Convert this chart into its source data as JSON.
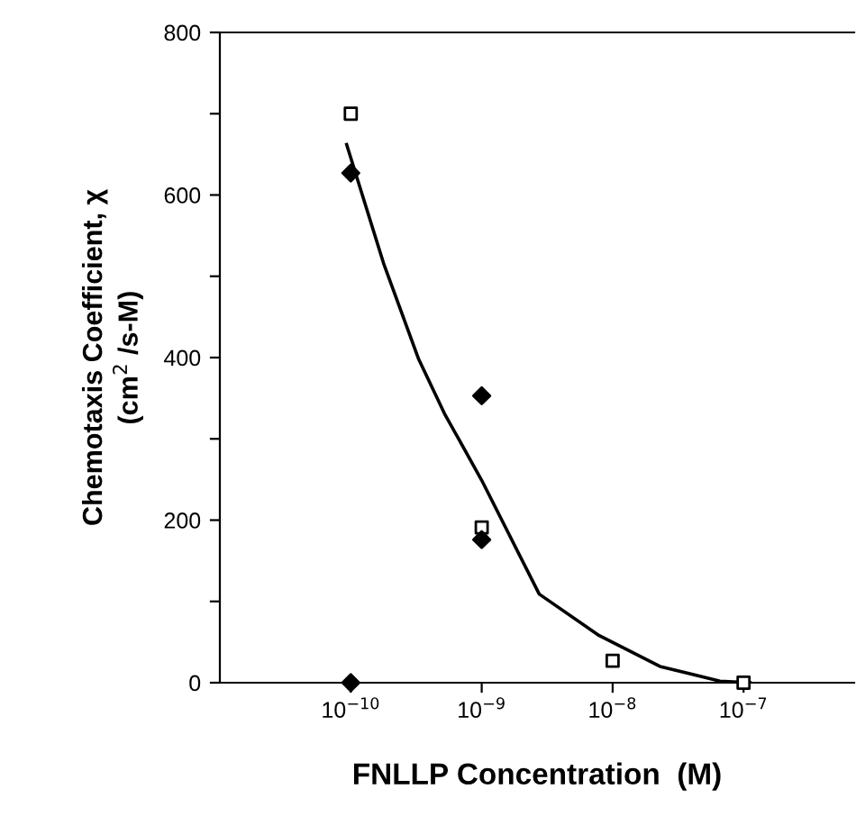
{
  "chart_data": {
    "type": "scatter",
    "xlabel": "FNLLP Concentration  (M)",
    "ylabel": "Chemotaxis Coefficient, χ\n(cm$^{2}$ /s-M)",
    "log": "x",
    "xlim": [
      1e-11,
      7e-07
    ],
    "ylim": [
      0,
      800
    ],
    "xticks": [
      {
        "value": 1e-10,
        "label": "10$^{−10}$"
      },
      {
        "value": 1e-09,
        "label": "10$^{−9}$"
      },
      {
        "value": 1e-08,
        "label": "10$^{−8}$"
      },
      {
        "value": 1e-07,
        "label": "10$^{−7}$"
      }
    ],
    "yticks": [
      0,
      {
        "value": 100,
        "label": null
      },
      200,
      {
        "value": 300,
        "label": null
      },
      400,
      {
        "value": 500,
        "label": null
      },
      600,
      {
        "value": 700,
        "label": null
      },
      800
    ],
    "grid": false,
    "legend": false,
    "series": [
      {
        "marker": "square",
        "color": "#000000",
        "x": [
          1e-10,
          1e-09,
          1e-08,
          1e-07
        ],
        "values": [
          700,
          191,
          27,
          0
        ]
      },
      {
        "marker": "diamond",
        "color": "#000000",
        "x": [
          1e-10,
          1e-10,
          1e-09,
          1e-09
        ],
        "values": [
          627,
          0,
          353,
          176
        ]
      },
      {
        "type": "line",
        "marker": "none",
        "color": "#000000",
        "x": [
          9.3e-11,
          1.78e-10,
          3.3e-10,
          5.2e-10,
          1e-09,
          2.75e-09,
          7.9e-09,
          2.3e-08,
          6.6e-08,
          1.12e-07
        ],
        "values": [
          662,
          516,
          398,
          331,
          249,
          109,
          58,
          20,
          2,
          0
        ]
      }
    ]
  }
}
